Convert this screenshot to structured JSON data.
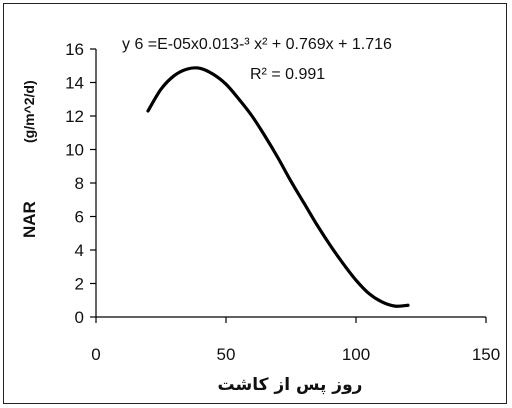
{
  "chart_data": {
    "type": "line",
    "title": "",
    "xlabel": "روز پس از کاشت",
    "ylabel": "NAR",
    "ylabel_unit": "(g/m^2/d)",
    "xlim": [
      0,
      150
    ],
    "ylim": [
      0,
      16
    ],
    "x_ticks": [
      "0",
      "50",
      "100",
      "150"
    ],
    "y_ticks": [
      "0",
      "2",
      "4",
      "6",
      "8",
      "10",
      "12",
      "14",
      "16"
    ],
    "grid": false,
    "legend": "none",
    "annotations": {
      "equation": "y 6 =E-05x0.013-³ x² + 0.769x + 1.716",
      "r_squared": "R² = 0.991"
    },
    "series": [
      {
        "color": "#000000",
        "x": [
          20,
          25,
          30,
          35,
          40,
          45,
          50,
          55,
          60,
          65,
          70,
          75,
          80,
          85,
          90,
          95,
          100,
          105,
          110,
          115,
          120
        ],
        "y": [
          12.3,
          13.6,
          14.4,
          14.8,
          14.85,
          14.5,
          13.9,
          13.0,
          12.0,
          10.8,
          9.5,
          8.1,
          6.8,
          5.5,
          4.3,
          3.2,
          2.2,
          1.4,
          0.9,
          0.65,
          0.7
        ]
      }
    ]
  }
}
